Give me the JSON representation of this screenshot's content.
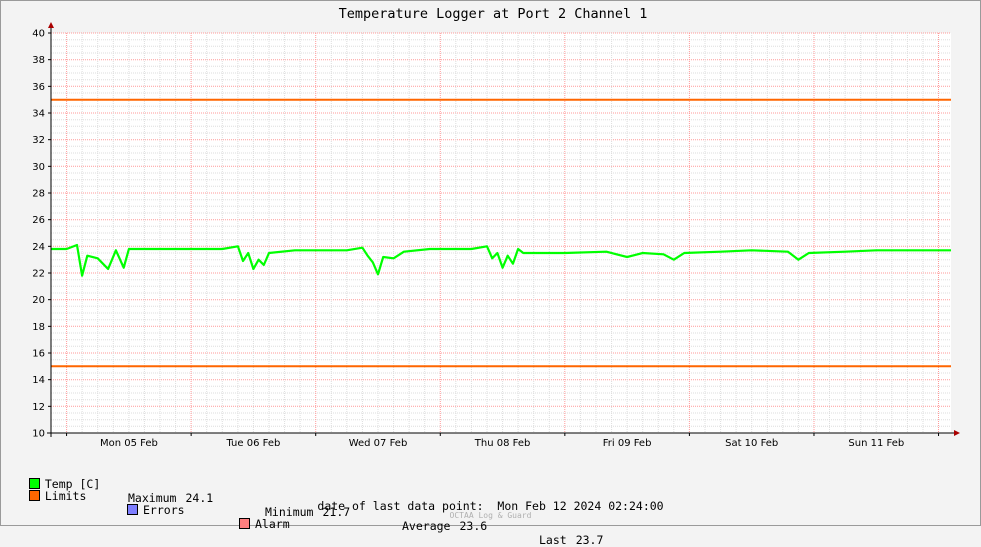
{
  "chart_data": {
    "type": "line",
    "title": "Temperature Logger at Port 2 Channel 1",
    "xlabel": "",
    "ylabel": "",
    "x_start": "2024-02-04 21:00",
    "x_end": "2024-02-12 02:24",
    "x_ticks": [
      {
        "label": "Mon 05 Feb",
        "date": "2024-02-05 12:00"
      },
      {
        "label": "Tue 06 Feb",
        "date": "2024-02-06 12:00"
      },
      {
        "label": "Wed 07 Feb",
        "date": "2024-02-07 12:00"
      },
      {
        "label": "Thu 08 Feb",
        "date": "2024-02-08 12:00"
      },
      {
        "label": "Fri 09 Feb",
        "date": "2024-02-09 12:00"
      },
      {
        "label": "Sat 10 Feb",
        "date": "2024-02-10 12:00"
      },
      {
        "label": "Sun 11 Feb",
        "date": "2024-02-11 12:00"
      }
    ],
    "ylim": [
      10,
      40
    ],
    "y_ticks": [
      10,
      12,
      14,
      16,
      18,
      20,
      22,
      24,
      26,
      28,
      30,
      32,
      34,
      36,
      38,
      40
    ],
    "grid": true,
    "legend_position": "bottom",
    "limits": [
      35,
      15
    ],
    "series": [
      {
        "name": "Temp [C]",
        "color": "#00ff00",
        "points": [
          [
            "2024-02-04 21:00",
            23.8
          ],
          [
            "2024-02-05 00:00",
            23.8
          ],
          [
            "2024-02-05 02:00",
            24.1
          ],
          [
            "2024-02-05 03:00",
            21.8
          ],
          [
            "2024-02-05 04:00",
            23.3
          ],
          [
            "2024-02-05 06:00",
            23.1
          ],
          [
            "2024-02-05 08:00",
            22.3
          ],
          [
            "2024-02-05 09:30",
            23.7
          ],
          [
            "2024-02-05 11:00",
            22.4
          ],
          [
            "2024-02-05 12:00",
            23.8
          ],
          [
            "2024-02-05 18:00",
            23.8
          ],
          [
            "2024-02-06 00:00",
            23.8
          ],
          [
            "2024-02-06 06:00",
            23.8
          ],
          [
            "2024-02-06 09:00",
            24.0
          ],
          [
            "2024-02-06 10:00",
            22.9
          ],
          [
            "2024-02-06 11:00",
            23.5
          ],
          [
            "2024-02-06 12:00",
            22.3
          ],
          [
            "2024-02-06 13:00",
            23.0
          ],
          [
            "2024-02-06 14:00",
            22.6
          ],
          [
            "2024-02-06 15:00",
            23.5
          ],
          [
            "2024-02-06 20:00",
            23.7
          ],
          [
            "2024-02-07 00:00",
            23.7
          ],
          [
            "2024-02-07 06:00",
            23.7
          ],
          [
            "2024-02-07 09:00",
            23.9
          ],
          [
            "2024-02-07 10:00",
            23.3
          ],
          [
            "2024-02-07 11:00",
            22.8
          ],
          [
            "2024-02-07 12:00",
            21.9
          ],
          [
            "2024-02-07 13:00",
            23.2
          ],
          [
            "2024-02-07 15:00",
            23.1
          ],
          [
            "2024-02-07 17:00",
            23.6
          ],
          [
            "2024-02-07 22:00",
            23.8
          ],
          [
            "2024-02-08 06:00",
            23.8
          ],
          [
            "2024-02-08 09:00",
            24.0
          ],
          [
            "2024-02-08 10:00",
            23.1
          ],
          [
            "2024-02-08 11:00",
            23.5
          ],
          [
            "2024-02-08 12:00",
            22.4
          ],
          [
            "2024-02-08 13:00",
            23.3
          ],
          [
            "2024-02-08 14:00",
            22.7
          ],
          [
            "2024-02-08 15:00",
            23.8
          ],
          [
            "2024-02-08 16:00",
            23.5
          ],
          [
            "2024-02-09 00:00",
            23.5
          ],
          [
            "2024-02-09 08:00",
            23.6
          ],
          [
            "2024-02-09 12:00",
            23.2
          ],
          [
            "2024-02-09 15:00",
            23.5
          ],
          [
            "2024-02-09 19:00",
            23.4
          ],
          [
            "2024-02-09 21:00",
            23.0
          ],
          [
            "2024-02-09 23:00",
            23.5
          ],
          [
            "2024-02-10 06:00",
            23.6
          ],
          [
            "2024-02-10 12:00",
            23.7
          ],
          [
            "2024-02-10 19:00",
            23.6
          ],
          [
            "2024-02-10 21:00",
            23.0
          ],
          [
            "2024-02-10 23:00",
            23.5
          ],
          [
            "2024-02-11 06:00",
            23.6
          ],
          [
            "2024-02-11 12:00",
            23.7
          ],
          [
            "2024-02-11 18:00",
            23.7
          ],
          [
            "2024-02-12 00:00",
            23.7
          ],
          [
            "2024-02-12 02:24",
            23.7
          ]
        ]
      }
    ]
  },
  "legend": {
    "temp": {
      "label": "Temp [C]",
      "color": "#00ff00"
    },
    "limits": {
      "label": "Limits",
      "color": "#ff6600"
    },
    "errors": {
      "label": "Errors",
      "color": "#7f7fff"
    },
    "alarm": {
      "label": "Alarm",
      "color": "#ff7f7f"
    },
    "stats": {
      "maximum_label": "Maximum",
      "maximum": "24.1",
      "minimum_label": "Minimum",
      "minimum": "21.7",
      "average_label": "Average",
      "average": "23.6",
      "last_label": "Last",
      "last": "23.7"
    }
  },
  "footer": {
    "date_label": "date of last data point:",
    "date_value": "Mon Feb 12 2024 02:24:00",
    "brand": "OCTAA Log & Guard"
  }
}
